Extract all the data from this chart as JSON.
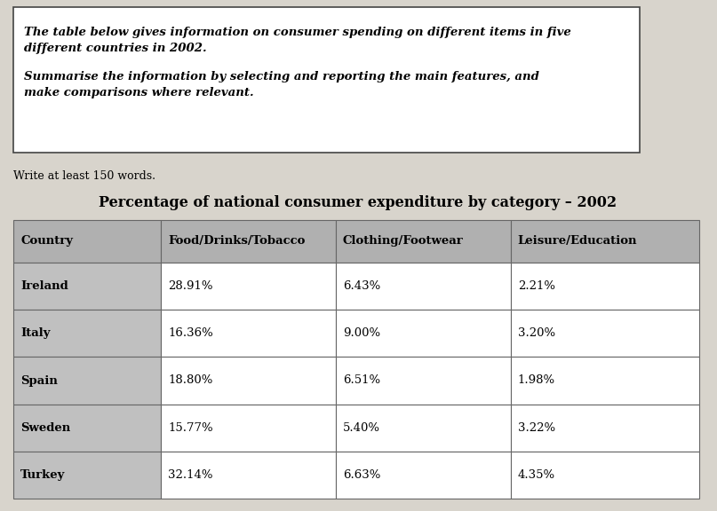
{
  "instruction_line1": "The table below gives information on consumer spending on different items in five",
  "instruction_line2": "different countries in 2002.",
  "instruction_line3": "Summarise the information by selecting and reporting the main features, and",
  "instruction_line4": "make comparisons where relevant.",
  "subtext": "Write at least 150 words.",
  "table_title": "Percentage of national consumer expenditure by category – 2002",
  "headers": [
    "Country",
    "Food/Drinks/Tobacco",
    "Clothing/Footwear",
    "Leisure/Education"
  ],
  "rows": [
    [
      "Ireland",
      "28.91%",
      "6.43%",
      "2.21%"
    ],
    [
      "Italy",
      "16.36%",
      "9.00%",
      "3.20%"
    ],
    [
      "Spain",
      "18.80%",
      "6.51%",
      "1.98%"
    ],
    [
      "Sweden",
      "15.77%",
      "5.40%",
      "3.22%"
    ],
    [
      "Turkey",
      "32.14%",
      "6.63%",
      "4.35%"
    ]
  ],
  "header_bg": "#b0b0b0",
  "country_col_bg": "#c0c0c0",
  "data_cell_bg": "#ffffff",
  "border_color": "#666666",
  "text_color": "#000000",
  "box_border_color": "#444444",
  "fig_bg": "#d8d4cc",
  "title_fontsize": 11.5,
  "header_fontsize": 9.5,
  "cell_fontsize": 9.5,
  "instruction_fontsize": 9.5,
  "subtext_fontsize": 9
}
